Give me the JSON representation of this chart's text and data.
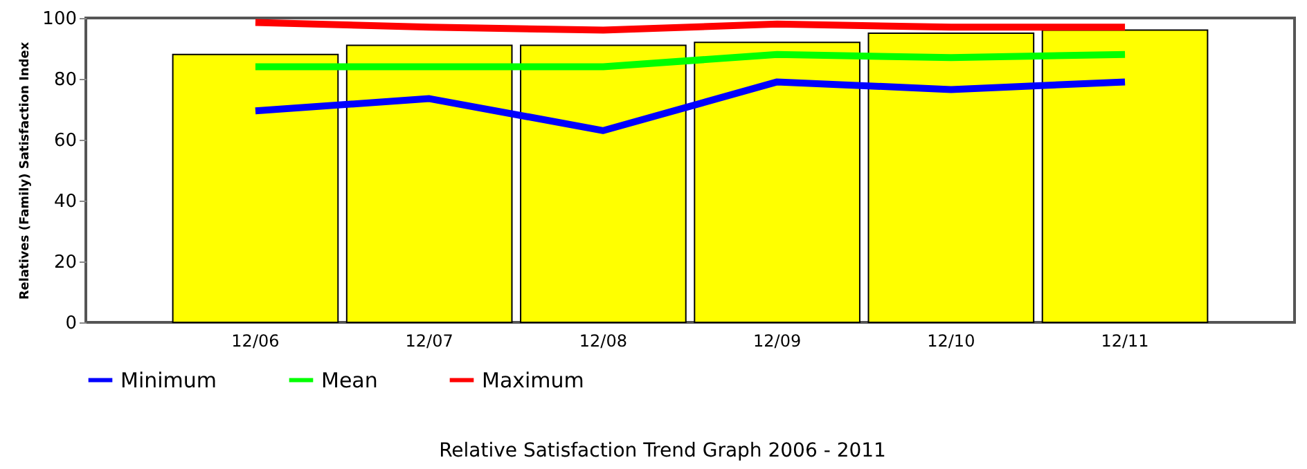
{
  "chart_data": {
    "type": "bar",
    "title": "Relative Satisfaction Trend Graph 2006 - 2011",
    "ylabel": "Relatives (Family) Satisfaction Index",
    "categories": [
      "12/06",
      "12/07",
      "12/08",
      "12/09",
      "12/10",
      "12/11"
    ],
    "series": [
      {
        "color": "#ffff00",
        "values": [
          88,
          91,
          91,
          92,
          95,
          96
        ]
      },
      {
        "type": "line",
        "name": "Minimum",
        "color": "#0000ff",
        "values": [
          69.5,
          73.5,
          63,
          79,
          76.5,
          79
        ]
      },
      {
        "type": "line",
        "name": "Mean",
        "color": "#00ff00",
        "values": [
          84,
          84,
          84,
          88,
          87,
          88
        ]
      },
      {
        "type": "line",
        "name": "Maximum",
        "color": "#ff0000",
        "values": [
          98.5,
          97,
          96,
          98,
          97,
          97
        ]
      }
    ],
    "ylim": [
      0,
      100
    ],
    "yticks": [
      0,
      20,
      40,
      60,
      80,
      100
    ],
    "legend": "bottom"
  }
}
